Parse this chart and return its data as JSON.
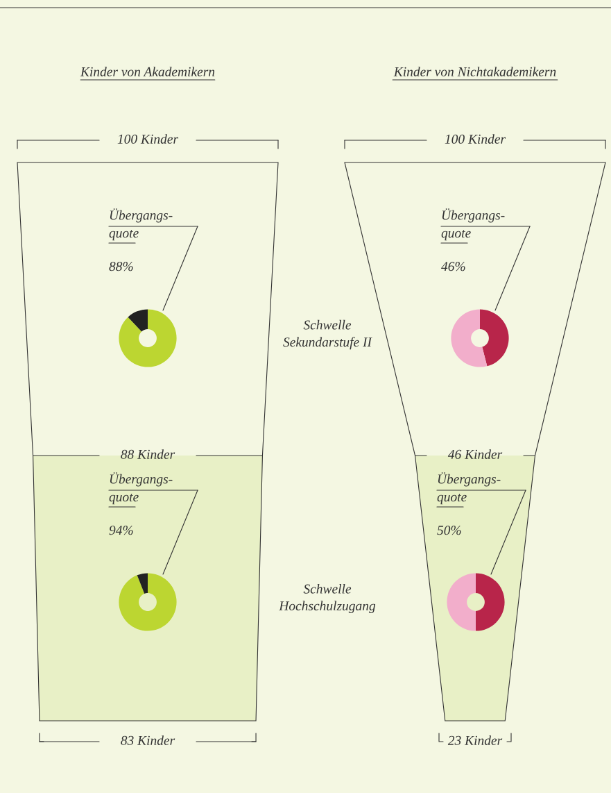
{
  "chart_data": [
    {
      "type": "other",
      "title": "Kinder von Akademikern",
      "values": [
        100,
        88,
        83
      ],
      "value_labels": [
        "100 Kinder",
        "88 Kinder",
        "83 Kinder"
      ],
      "color": "#e8f0c6",
      "annotations": [
        "Schwelle\nSekundarstufe II",
        "Schwelle\nHochschulzugang"
      ]
    },
    {
      "type": "donut",
      "title": "Übergangs-\nquote",
      "categories": [
        null,
        null
      ],
      "values": [
        88,
        12
      ],
      "colors": [
        "#bcd631",
        "#222222"
      ],
      "value_labels": [
        "88%",
        null
      ]
    },
    {
      "type": "donut",
      "title": "Übergangs-\nquote",
      "categories": [
        null,
        null
      ],
      "values": [
        94,
        6
      ],
      "colors": [
        "#bcd631",
        "#222222"
      ],
      "value_labels": [
        "94%",
        null
      ]
    },
    {
      "type": "other",
      "title": "Kinder von Nichtakademikern",
      "values": [
        100,
        46,
        23
      ],
      "value_labels": [
        "100 Kinder",
        "46 Kinder",
        "23 Kinder"
      ],
      "color": "#e8f0c6"
    },
    {
      "type": "donut",
      "title": "Übergangs-\nquote",
      "categories": [
        null,
        null
      ],
      "values": [
        46,
        54
      ],
      "colors": [
        "#b8254a",
        "#f2aecb"
      ],
      "value_labels": [
        "46%",
        null
      ]
    },
    {
      "type": "donut",
      "title": "Übergangs-\nquote",
      "categories": [
        null,
        null
      ],
      "values": [
        50,
        50
      ],
      "colors": [
        "#b8254a",
        "#f2aecb"
      ],
      "value_labels": [
        "50%",
        null
      ]
    }
  ]
}
